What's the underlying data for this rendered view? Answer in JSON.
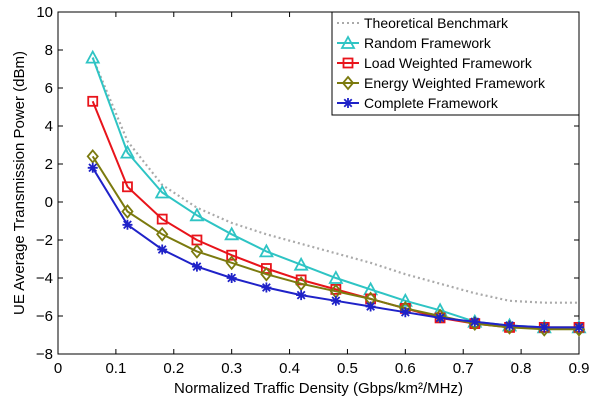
{
  "chart_data": {
    "type": "line",
    "xlabel": "Normalized Traffic Density (Gbps/km²/MHz)",
    "ylabel": "UE Average Transmission Power (dBm)",
    "xlim": [
      0,
      0.9
    ],
    "ylim": [
      -8,
      10
    ],
    "xticks": [
      0,
      0.1,
      0.2,
      0.3,
      0.4,
      0.5,
      0.6,
      0.7,
      0.8,
      0.9
    ],
    "xtick_labels": [
      "0",
      "0.1",
      "0.2",
      "0.3",
      "0.4",
      "0.5",
      "0.6",
      "0.7",
      "0.8",
      "0.9"
    ],
    "yticks": [
      -8,
      -6,
      -4,
      -2,
      0,
      2,
      4,
      6,
      8,
      10
    ],
    "ytick_labels": [
      "−8",
      "−6",
      "−4",
      "−2",
      "0",
      "2",
      "4",
      "6",
      "8",
      "10"
    ],
    "grid": false,
    "legend_position": "top-right",
    "x": [
      0.06,
      0.12,
      0.18,
      0.24,
      0.3,
      0.36,
      0.42,
      0.48,
      0.54,
      0.6,
      0.66,
      0.72,
      0.78,
      0.84,
      0.9
    ],
    "series": [
      {
        "name": "Theoretical Benchmark",
        "color": "#aaaaaa",
        "marker": "none",
        "dash": true,
        "values": [
          7.6,
          3.2,
          0.9,
          -0.3,
          -1.1,
          -1.7,
          -2.2,
          -2.7,
          -3.2,
          -3.8,
          -4.3,
          -4.8,
          -5.2,
          -5.3,
          -5.3
        ]
      },
      {
        "name": "Random Framework",
        "color": "#2ec4c4",
        "marker": "triangle",
        "values": [
          7.6,
          2.6,
          0.5,
          -0.7,
          -1.7,
          -2.6,
          -3.3,
          -4.0,
          -4.6,
          -5.2,
          -5.7,
          -6.3,
          -6.5,
          -6.6,
          -6.6
        ]
      },
      {
        "name": "Load Weighted Framework",
        "color": "#e8141b",
        "marker": "square",
        "values": [
          5.3,
          0.8,
          -0.9,
          -2.0,
          -2.8,
          -3.5,
          -4.1,
          -4.6,
          -5.1,
          -5.6,
          -6.1,
          -6.4,
          -6.6,
          -6.6,
          -6.6
        ]
      },
      {
        "name": "Energy Weighted Framework",
        "color": "#7b7a0e",
        "marker": "diamond",
        "values": [
          2.4,
          -0.5,
          -1.7,
          -2.6,
          -3.2,
          -3.8,
          -4.3,
          -4.7,
          -5.1,
          -5.6,
          -6.0,
          -6.4,
          -6.6,
          -6.7,
          -6.7
        ]
      },
      {
        "name": "Complete Framework",
        "color": "#1f22c8",
        "marker": "star",
        "values": [
          1.8,
          -1.2,
          -2.5,
          -3.4,
          -4.0,
          -4.5,
          -4.9,
          -5.2,
          -5.5,
          -5.8,
          -6.1,
          -6.3,
          -6.5,
          -6.6,
          -6.6
        ]
      }
    ]
  }
}
